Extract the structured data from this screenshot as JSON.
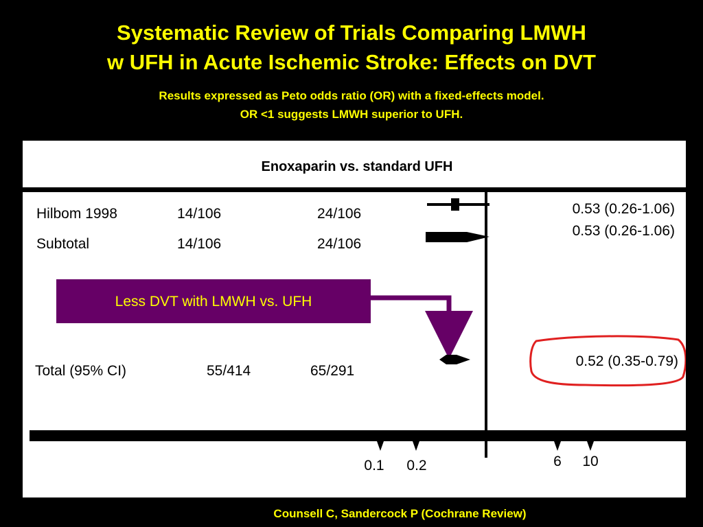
{
  "slide": {
    "title_line_1": "Systematic Review of Trials Comparing LMWH",
    "title_line_2": "w UFH in Acute Ischemic Stroke: Effects on DVT",
    "subtitle_line_1": "Results expressed as Peto odds ratio (OR) with a fixed-effects model.",
    "subtitle_line_2": "OR <1 suggests LMWH superior to UFH.",
    "citation": "Counsell C, Sandercock P (Cochrane Review)"
  },
  "chart_data": {
    "type": "forest",
    "title": "Enoxaparin vs. standard UFH",
    "null_line": 1,
    "x_scale": "log",
    "x_ticks": [
      "0.1",
      "0.2",
      "6",
      "10"
    ],
    "rows": [
      {
        "label": "Hilbom 1998",
        "lmwh": "14/106",
        "ufh": "24/106",
        "or_text": "0.53 (0.26-1.06)",
        "or": 0.53,
        "ci": [
          0.26,
          1.06
        ],
        "marker": "square"
      },
      {
        "label": "Subtotal",
        "lmwh": "14/106",
        "ufh": "24/106",
        "or_text": "0.53 (0.26-1.06)",
        "or": 0.53,
        "ci": [
          0.26,
          1.06
        ],
        "marker": "diamond"
      },
      {
        "label": "Total (95% CI)",
        "lmwh": "55/414",
        "ufh": "65/291",
        "or_text": "0.52 (0.35-0.79)",
        "or": 0.52,
        "ci": [
          0.35,
          0.79
        ],
        "marker": "diamond",
        "circled": true
      }
    ],
    "callout": "Less DVT with LMWH vs. UFH",
    "colors": {
      "callout_fill": "#660066",
      "callout_text": "#ffff00",
      "highlight": "#e02020",
      "slide_text": "#ffff00",
      "background": "#000000"
    }
  }
}
